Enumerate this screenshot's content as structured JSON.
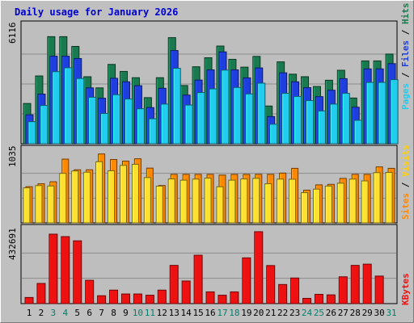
{
  "title": "Daily usage for January 2026",
  "colors": {
    "background": "#c0c0c0",
    "plot_background": "#bebebe",
    "title": "#0000cc",
    "hits": "#1a7a4f",
    "files": "#1e3ee0",
    "pages": "#22ccee",
    "visits": "#ffe030",
    "sites": "#ff8800",
    "kbytes": "#ee1111",
    "weekend_day": "#00806e"
  },
  "legend": {
    "pages": "Pages",
    "files": "Files",
    "hits": "Hits",
    "sites": "Sites",
    "visits": "Visits",
    "kbytes": "KBytes",
    "sep": " / "
  },
  "chart_data": [
    {
      "type": "bar",
      "panel": "hits-files-pages",
      "title": "Daily usage for January 2026",
      "ymax_label": "6116",
      "ylim": [
        0,
        6116
      ],
      "categories": [
        "1",
        "2",
        "3",
        "4",
        "5",
        "6",
        "7",
        "8",
        "9",
        "10",
        "11",
        "12",
        "13",
        "14",
        "15",
        "16",
        "17",
        "18",
        "19",
        "20",
        "21",
        "22",
        "23",
        "24",
        "25",
        "26",
        "27",
        "28",
        "29",
        "30",
        "31"
      ],
      "weekend_days": [
        "3",
        "4",
        "10",
        "11",
        "17",
        "18",
        "24",
        "25",
        "31"
      ],
      "series": [
        {
          "name": "Hits",
          "values": [
            2060,
            3470,
            5480,
            5480,
            4980,
            3430,
            2860,
            4060,
            3700,
            3380,
            2360,
            3380,
            5430,
            2980,
            3940,
            4400,
            5000,
            4320,
            3920,
            4470,
            1930,
            4190,
            3560,
            3430,
            2930,
            3250,
            3760,
            2340,
            4240,
            4240,
            4590
          ]
        },
        {
          "name": "Files",
          "values": [
            1480,
            2540,
            4480,
            4480,
            4360,
            2860,
            2330,
            3350,
            3170,
            2970,
            1850,
            2840,
            4770,
            2490,
            3260,
            3780,
            4700,
            3780,
            3370,
            3880,
            1390,
            3630,
            3170,
            2870,
            2410,
            2740,
            3330,
            1870,
            3830,
            3830,
            4100
          ]
        },
        {
          "name": "Pages",
          "values": [
            1130,
            1960,
            3690,
            3890,
            3340,
            2380,
            1550,
            2510,
            2290,
            1790,
            1280,
            2030,
            3860,
            1980,
            2620,
            2810,
            3770,
            2880,
            2550,
            3100,
            1000,
            2580,
            2420,
            2210,
            1680,
            2030,
            2580,
            1200,
            3140,
            3140,
            3280
          ]
        }
      ]
    },
    {
      "type": "bar",
      "panel": "sites-visits",
      "ymax_label": "1035",
      "ylim": [
        0,
        1035
      ],
      "series": [
        {
          "name": "Sites",
          "values": [
            505,
            545,
            573,
            888,
            740,
            740,
            960,
            883,
            860,
            893,
            763,
            521,
            676,
            676,
            676,
            676,
            666,
            676,
            676,
            676,
            676,
            694,
            760,
            456,
            530,
            537,
            620,
            676,
            676,
            780,
            760
          ]
        },
        {
          "name": "Visits",
          "values": [
            488,
            520,
            514,
            690,
            723,
            706,
            852,
            726,
            801,
            816,
            631,
            512,
            612,
            595,
            610,
            623,
            503,
            595,
            612,
            621,
            545,
            610,
            608,
            421,
            470,
            513,
            553,
            610,
            585,
            700,
            703
          ]
        }
      ]
    },
    {
      "type": "bar",
      "panel": "kbytes",
      "ymax_label": "432691",
      "ylim": [
        0,
        432691
      ],
      "series": [
        {
          "name": "KBytes",
          "values": [
            35000,
            115000,
            396000,
            382000,
            358000,
            133000,
            45000,
            77000,
            55000,
            55000,
            48000,
            77000,
            218000,
            129000,
            276000,
            67000,
            48000,
            67000,
            261000,
            410000,
            217000,
            109000,
            146000,
            30000,
            53000,
            50000,
            153000,
            218000,
            225000,
            157000,
            0
          ]
        }
      ]
    }
  ]
}
